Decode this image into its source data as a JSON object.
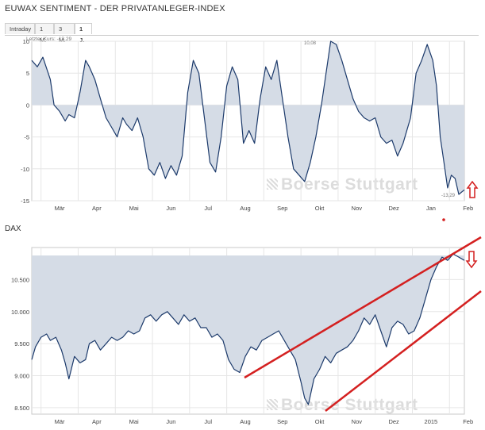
{
  "header": {
    "title": "EUWAX SENTIMENT - DER PRIVATANLEGER-INDEX",
    "tabs": [
      {
        "label": "Intraday",
        "active": false
      },
      {
        "label": "1 M.",
        "active": false
      },
      {
        "label": "3 M.",
        "active": false
      },
      {
        "label": "1 J.",
        "active": true
      }
    ],
    "last_price": "Letzter Kurs: -13,29"
  },
  "watermark": "Boerse Stuttgart",
  "colors": {
    "line": "#1c3a6b",
    "fill": "#d5dce6",
    "annotation": "#d42020"
  },
  "chart_data": [
    {
      "type": "area",
      "title": "EUWAX SENTIMENT - DER PRIVATANLEGER-INDEX",
      "x_labels": [
        "Mär",
        "Apr",
        "Mai",
        "Jun",
        "Jul",
        "Aug",
        "Sep",
        "Okt",
        "Nov",
        "Dez",
        "Jan",
        "Feb"
      ],
      "ylim": [
        -15,
        10
      ],
      "yticks": [
        10,
        5,
        0,
        -5,
        -10,
        -15
      ],
      "baseline": 0,
      "annotations": [
        "10,08",
        "-13,29"
      ],
      "arrow": "up",
      "series": [
        {
          "values": [
            [
              0.0,
              7.0
            ],
            [
              0.3,
              6.0
            ],
            [
              0.6,
              7.5
            ],
            [
              1.0,
              4.0
            ],
            [
              1.2,
              0.0
            ],
            [
              1.5,
              -1.0
            ],
            [
              1.8,
              -2.5
            ],
            [
              2.0,
              -1.5
            ],
            [
              2.3,
              -2.0
            ],
            [
              2.6,
              2.0
            ],
            [
              2.9,
              7.0
            ],
            [
              3.1,
              6.0
            ],
            [
              3.4,
              4.0
            ],
            [
              3.7,
              1.0
            ],
            [
              4.0,
              -2.0
            ],
            [
              4.3,
              -3.5
            ],
            [
              4.6,
              -5.0
            ],
            [
              4.9,
              -2.0
            ],
            [
              5.1,
              -3.0
            ],
            [
              5.4,
              -4.0
            ],
            [
              5.7,
              -2.0
            ],
            [
              6.0,
              -5.0
            ],
            [
              6.3,
              -10.0
            ],
            [
              6.6,
              -11.0
            ],
            [
              6.9,
              -9.0
            ],
            [
              7.2,
              -11.5
            ],
            [
              7.5,
              -9.5
            ],
            [
              7.8,
              -11.0
            ],
            [
              8.1,
              -8.0
            ],
            [
              8.4,
              2.0
            ],
            [
              8.7,
              7.0
            ],
            [
              9.0,
              5.0
            ],
            [
              9.3,
              -2.0
            ],
            [
              9.6,
              -9.0
            ],
            [
              9.9,
              -10.5
            ],
            [
              10.2,
              -5.0
            ],
            [
              10.5,
              3.0
            ],
            [
              10.8,
              6.0
            ],
            [
              11.1,
              4.0
            ],
            [
              11.4,
              -6.0
            ],
            [
              11.7,
              -4.0
            ],
            [
              12.0,
              -6.0
            ],
            [
              12.3,
              1.0
            ],
            [
              12.6,
              6.0
            ],
            [
              12.9,
              4.0
            ],
            [
              13.2,
              7.0
            ],
            [
              13.5,
              1.0
            ],
            [
              13.8,
              -5.0
            ],
            [
              14.1,
              -10.0
            ],
            [
              14.4,
              -11.0
            ],
            [
              14.7,
              -12.0
            ],
            [
              15.0,
              -9.0
            ],
            [
              15.3,
              -5.0
            ],
            [
              15.6,
              0.0
            ],
            [
              15.8,
              4.0
            ],
            [
              16.1,
              10.0
            ],
            [
              16.4,
              9.5
            ],
            [
              16.7,
              7.0
            ],
            [
              17.0,
              4.0
            ],
            [
              17.3,
              1.0
            ],
            [
              17.6,
              -1.0
            ],
            [
              17.9,
              -2.0
            ],
            [
              18.2,
              -2.5
            ],
            [
              18.5,
              -2.0
            ],
            [
              18.8,
              -5.0
            ],
            [
              19.1,
              -6.0
            ],
            [
              19.4,
              -5.5
            ],
            [
              19.7,
              -8.0
            ],
            [
              20.0,
              -6.0
            ],
            [
              20.2,
              -4.0
            ],
            [
              20.4,
              -2.0
            ],
            [
              20.7,
              5.0
            ],
            [
              21.0,
              7.0
            ],
            [
              21.3,
              9.5
            ],
            [
              21.6,
              7.0
            ],
            [
              21.8,
              3.0
            ],
            [
              22.0,
              -5.0
            ],
            [
              22.2,
              -9.0
            ],
            [
              22.4,
              -13.0
            ],
            [
              22.6,
              -11.0
            ],
            [
              22.8,
              -11.5
            ],
            [
              23.0,
              -14.0
            ],
            [
              23.3,
              -13.3
            ]
          ]
        }
      ]
    },
    {
      "type": "area",
      "title": "DAX",
      "x_labels": [
        "Mär",
        "Apr",
        "Mai",
        "Jun",
        "Jul",
        "Aug",
        "Sep",
        "Okt",
        "Nov",
        "Dez",
        "2015",
        "Feb"
      ],
      "ylim": [
        8400,
        11000
      ],
      "yticks": [
        10500,
        10000,
        9500,
        9000,
        8500
      ],
      "ytick_labels": [
        "10.500",
        "10.000",
        "9.500",
        "9.000",
        "8.500"
      ],
      "arrow": "down",
      "series": [
        {
          "values": [
            [
              0.0,
              9250
            ],
            [
              0.2,
              9450
            ],
            [
              0.5,
              9600
            ],
            [
              0.8,
              9650
            ],
            [
              1.0,
              9550
            ],
            [
              1.3,
              9600
            ],
            [
              1.6,
              9400
            ],
            [
              1.8,
              9200
            ],
            [
              2.0,
              8950
            ],
            [
              2.3,
              9300
            ],
            [
              2.6,
              9200
            ],
            [
              2.9,
              9250
            ],
            [
              3.1,
              9500
            ],
            [
              3.4,
              9550
            ],
            [
              3.7,
              9400
            ],
            [
              4.0,
              9500
            ],
            [
              4.3,
              9600
            ],
            [
              4.6,
              9550
            ],
            [
              4.9,
              9600
            ],
            [
              5.2,
              9700
            ],
            [
              5.5,
              9650
            ],
            [
              5.8,
              9700
            ],
            [
              6.1,
              9900
            ],
            [
              6.4,
              9950
            ],
            [
              6.7,
              9850
            ],
            [
              7.0,
              9950
            ],
            [
              7.3,
              10000
            ],
            [
              7.6,
              9900
            ],
            [
              7.9,
              9800
            ],
            [
              8.2,
              9950
            ],
            [
              8.5,
              9850
            ],
            [
              8.8,
              9900
            ],
            [
              9.1,
              9750
            ],
            [
              9.4,
              9750
            ],
            [
              9.7,
              9600
            ],
            [
              10.0,
              9650
            ],
            [
              10.3,
              9550
            ],
            [
              10.6,
              9250
            ],
            [
              10.9,
              9100
            ],
            [
              11.2,
              9050
            ],
            [
              11.5,
              9300
            ],
            [
              11.8,
              9450
            ],
            [
              12.1,
              9400
            ],
            [
              12.4,
              9550
            ],
            [
              12.7,
              9600
            ],
            [
              13.0,
              9650
            ],
            [
              13.3,
              9700
            ],
            [
              13.6,
              9550
            ],
            [
              13.9,
              9400
            ],
            [
              14.2,
              9250
            ],
            [
              14.5,
              8900
            ],
            [
              14.7,
              8650
            ],
            [
              14.9,
              8550
            ],
            [
              15.2,
              8950
            ],
            [
              15.5,
              9100
            ],
            [
              15.8,
              9300
            ],
            [
              16.1,
              9200
            ],
            [
              16.4,
              9350
            ],
            [
              16.7,
              9400
            ],
            [
              17.0,
              9450
            ],
            [
              17.3,
              9550
            ],
            [
              17.6,
              9700
            ],
            [
              17.9,
              9900
            ],
            [
              18.2,
              9800
            ],
            [
              18.5,
              9950
            ],
            [
              18.8,
              9700
            ],
            [
              19.1,
              9450
            ],
            [
              19.4,
              9750
            ],
            [
              19.7,
              9850
            ],
            [
              20.0,
              9800
            ],
            [
              20.3,
              9650
            ],
            [
              20.6,
              9700
            ],
            [
              20.9,
              9900
            ],
            [
              21.2,
              10200
            ],
            [
              21.5,
              10500
            ],
            [
              21.8,
              10700
            ],
            [
              22.1,
              10850
            ],
            [
              22.4,
              10800
            ],
            [
              22.7,
              10900
            ],
            [
              23.0,
              10850
            ],
            [
              23.3,
              10800
            ]
          ]
        }
      ]
    }
  ]
}
